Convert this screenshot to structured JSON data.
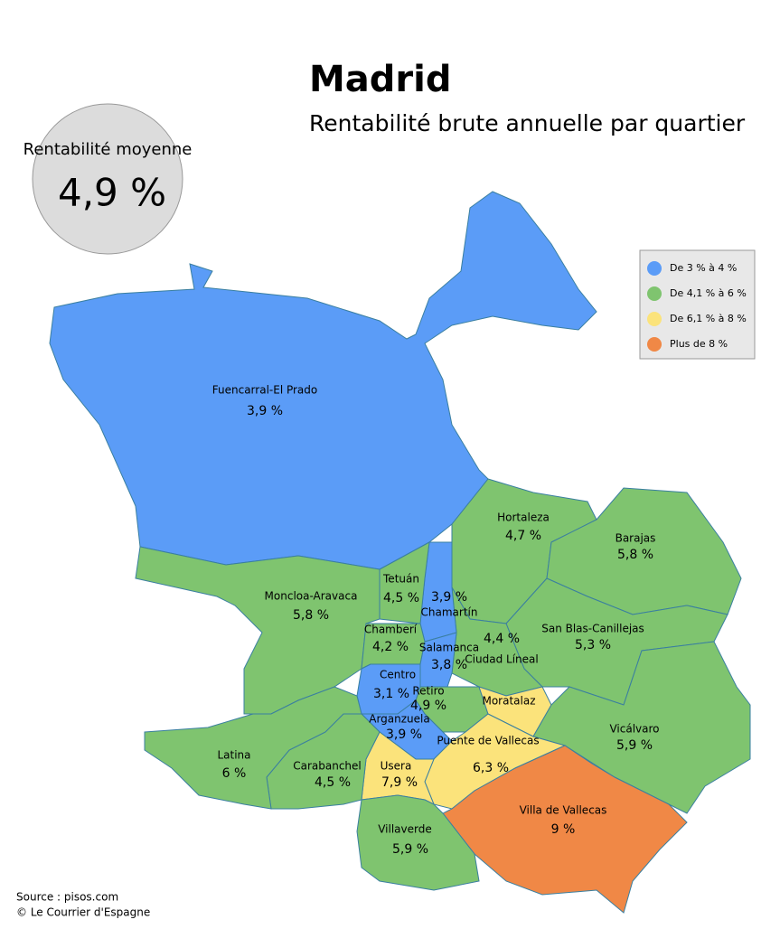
{
  "title": "Madrid",
  "subtitle": "Rentabilité brute annuelle par quartier",
  "average": {
    "label": "Rentabilité moyenne",
    "value": "4,9 %"
  },
  "legend": [
    {
      "label": "De 3 % à 4 %",
      "color": "#5b9cf7"
    },
    {
      "label": "De 4,1 % à 6 %",
      "color": "#7fc46f"
    },
    {
      "label": "De 6,1 % à 8 %",
      "color": "#fbe37b"
    },
    {
      "label": "Plus de 8 %",
      "color": "#f08846"
    }
  ],
  "districts": [
    {
      "name": "Fuencarral-El Prado",
      "value": "3,9 %",
      "color": "#5b9cf7"
    },
    {
      "name": "Hortaleza",
      "value": "4,7 %",
      "color": "#7fc46f"
    },
    {
      "name": "Barajas",
      "value": "5,8 %",
      "color": "#7fc46f"
    },
    {
      "name": "San Blas-Canillejas",
      "value": "5,3 %",
      "color": "#7fc46f"
    },
    {
      "name": "Ciudad Líneal",
      "value": "4,4 %",
      "color": "#7fc46f"
    },
    {
      "name": "Chamartín",
      "value": "3,9 %",
      "color": "#5b9cf7"
    },
    {
      "name": "Tetuán",
      "value": "4,5 %",
      "color": "#7fc46f"
    },
    {
      "name": "Moncloa-Aravaca",
      "value": "5,8 %",
      "color": "#7fc46f"
    },
    {
      "name": "Chamberí",
      "value": "4,2 %",
      "color": "#7fc46f"
    },
    {
      "name": "Salamanca",
      "value": "3,8 %",
      "color": "#5b9cf7"
    },
    {
      "name": "Retiro",
      "value": "4,9 %",
      "color": "#7fc46f"
    },
    {
      "name": "Centro",
      "value": "3,1 %",
      "color": "#5b9cf7"
    },
    {
      "name": "Arganzuela",
      "value": "3,9 %",
      "color": "#5b9cf7"
    },
    {
      "name": "Moratalaz",
      "value": "",
      "color": "#fbe37b"
    },
    {
      "name": "Vicálvaro",
      "value": "5,9 %",
      "color": "#7fc46f"
    },
    {
      "name": "Puente de Vallecas",
      "value": "6,3 %",
      "color": "#fbe37b"
    },
    {
      "name": "Villa de Vallecas",
      "value": "9 %",
      "color": "#f08846"
    },
    {
      "name": "Usera",
      "value": "7,9 %",
      "color": "#fbe37b"
    },
    {
      "name": "Carabanchel",
      "value": "4,5 %",
      "color": "#7fc46f"
    },
    {
      "name": "Latina",
      "value": "6 %",
      "color": "#7fc46f"
    },
    {
      "name": "Villaverde",
      "value": "5,9 %",
      "color": "#7fc46f"
    }
  ],
  "source": "Source : pisos.com",
  "credit": "© Le Courrier d'Espagne"
}
